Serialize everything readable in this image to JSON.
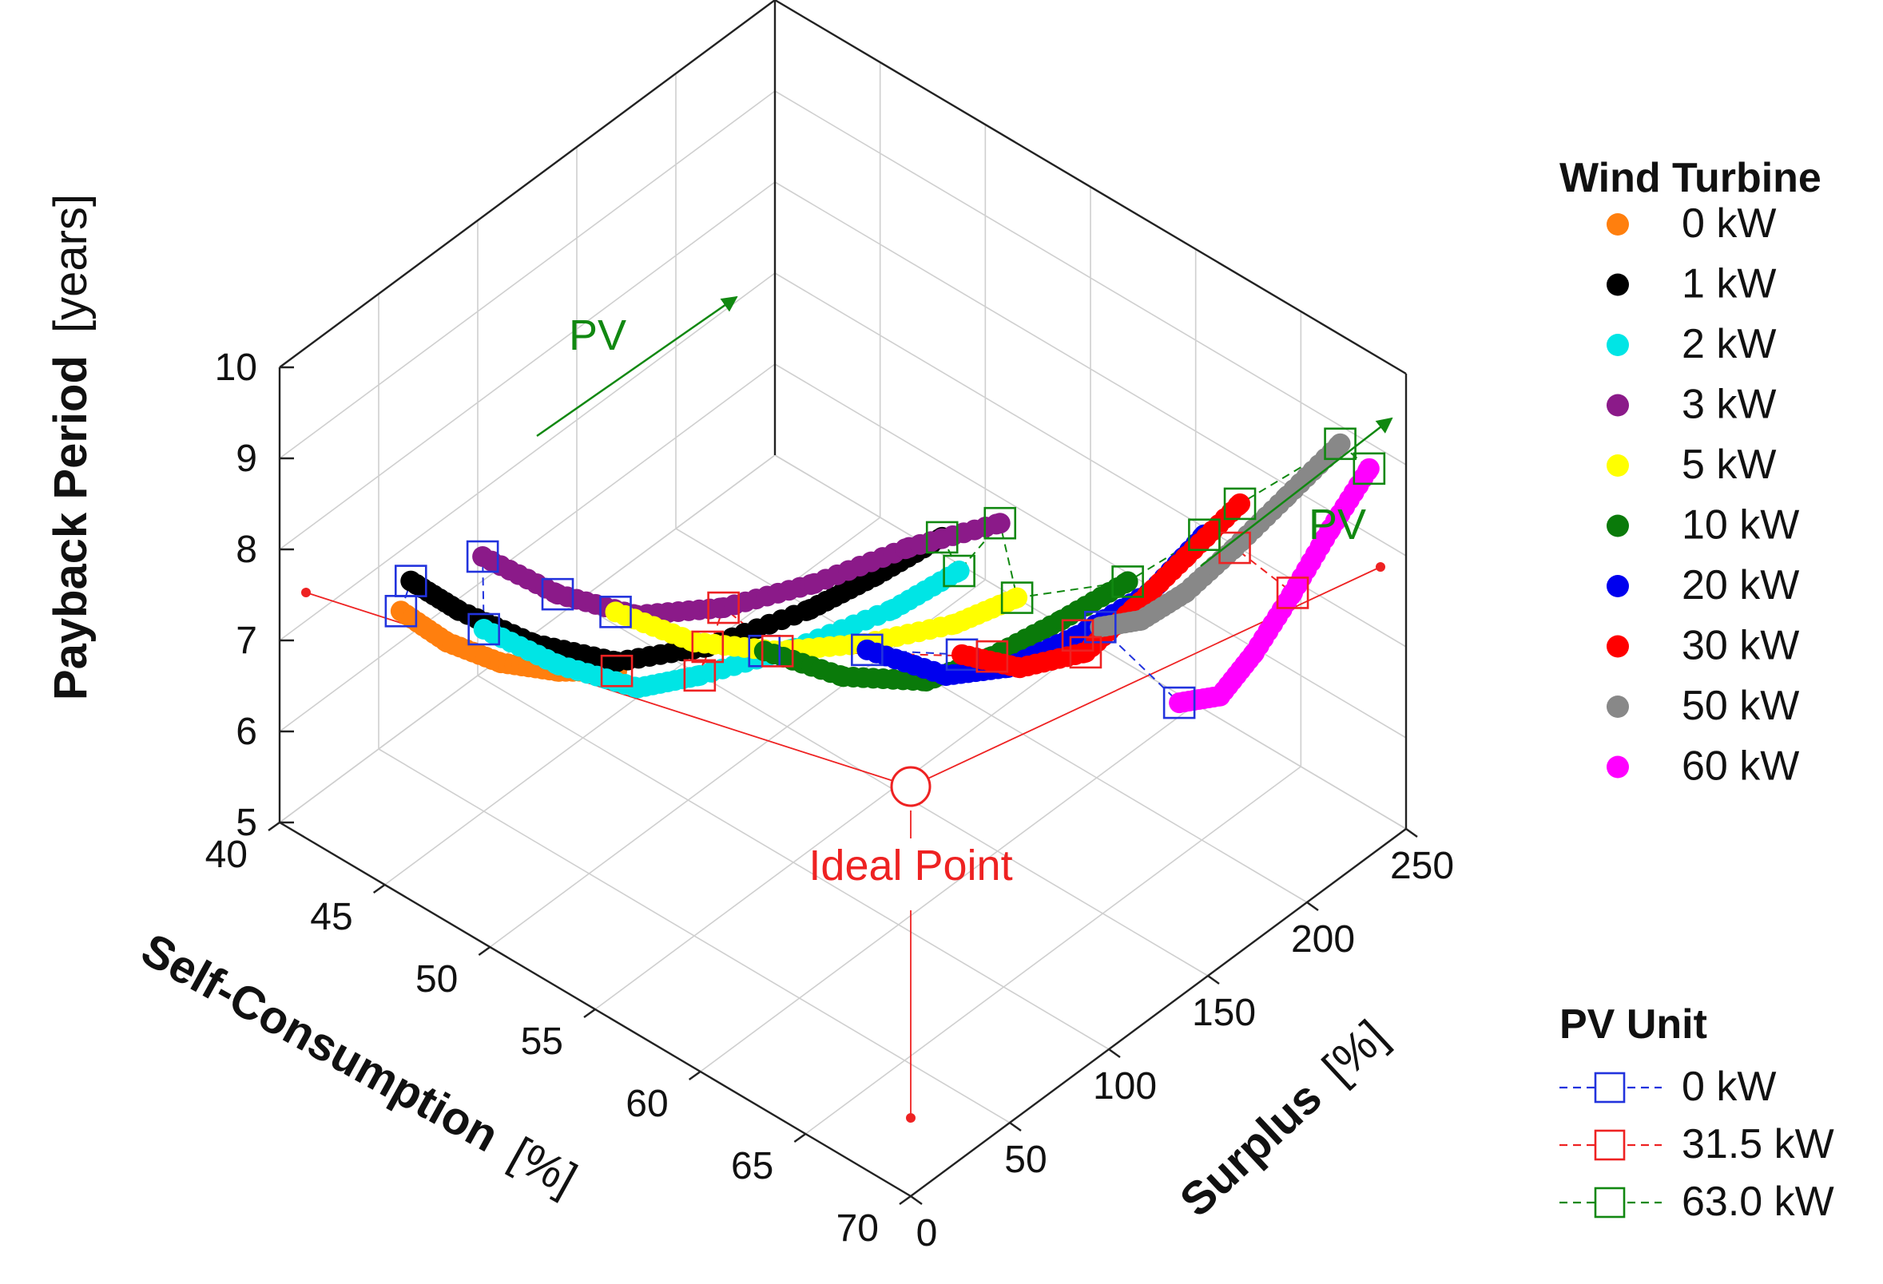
{
  "chart_data": {
    "type": "scatter",
    "subtype": "3d-scatter-line",
    "zlabel": "Payback Period",
    "zlabel_unit": "[years]",
    "xlabel": "Self-Consumption",
    "xlabel_unit": "[%]",
    "ylabel": "Surplus",
    "ylabel_unit": "[%]",
    "z_ticks": [
      "5",
      "6",
      "7",
      "8",
      "9",
      "10"
    ],
    "x_ticks": [
      "40",
      "45",
      "50",
      "55",
      "60",
      "65",
      "70"
    ],
    "y_ticks": [
      "0",
      "50",
      "100",
      "150",
      "200",
      "250"
    ],
    "xlim": [
      40,
      70
    ],
    "ylim": [
      0,
      250
    ],
    "zlim": [
      5,
      10
    ],
    "grid": true,
    "legend_wind": {
      "title": "Wind Turbine",
      "entries": [
        {
          "label": "0 kW",
          "color": "#ff7f0e"
        },
        {
          "label": "1 kW",
          "color": "#000000"
        },
        {
          "label": "2 kW",
          "color": "#00e5e5"
        },
        {
          "label": "3 kW",
          "color": "#8b1a89"
        },
        {
          "label": "5 kW",
          "color": "#ffff00"
        },
        {
          "label": "10 kW",
          "color": "#0a7a0a"
        },
        {
          "label": "20 kW",
          "color": "#0000ee"
        },
        {
          "label": "30 kW",
          "color": "#ff0000"
        },
        {
          "label": "50 kW",
          "color": "#888888"
        },
        {
          "label": "60 kW",
          "color": "#ff00ff"
        }
      ]
    },
    "legend_pv": {
      "title": "PV Unit",
      "entries": [
        {
          "label": "0 kW",
          "color": "#2233dd"
        },
        {
          "label": "31.5 kW",
          "color": "#ee2222"
        },
        {
          "label": "63.0 kW",
          "color": "#118811"
        }
      ]
    },
    "annotations": {
      "pv_left": "PV",
      "pv_right": "PV",
      "ideal_point": "Ideal Point"
    },
    "wind_series": [
      {
        "name": "0 kW",
        "color": "#ff7f0e",
        "points": [
          [
            42,
            40,
            6.95
          ],
          [
            44,
            42,
            6.85
          ],
          [
            46,
            48,
            6.8
          ],
          [
            48,
            56,
            6.85
          ],
          [
            50,
            64,
            7.0
          ]
        ]
      },
      {
        "name": "1 kW",
        "color": "#000000",
        "points": [
          [
            42,
            45,
            7.2
          ],
          [
            44,
            48,
            7.1
          ],
          [
            47,
            54,
            7.05
          ],
          [
            50,
            64,
            7.1
          ],
          [
            53,
            78,
            7.45
          ],
          [
            56,
            98,
            7.95
          ],
          [
            58,
            110,
            8.4
          ],
          [
            60,
            122,
            8.9
          ]
        ]
      },
      {
        "name": "2 kW",
        "color": "#00e5e5",
        "points": [
          [
            45,
            50,
            7.0
          ],
          [
            48,
            56,
            6.92
          ],
          [
            51,
            64,
            6.95
          ],
          [
            53,
            74,
            7.2
          ],
          [
            56,
            90,
            7.65
          ],
          [
            59,
            108,
            8.2
          ],
          [
            61,
            120,
            8.7
          ]
        ]
      },
      {
        "name": "3 kW",
        "color": "#8b1a89",
        "points": [
          [
            44,
            60,
            7.5
          ],
          [
            47,
            66,
            7.4
          ],
          [
            50,
            74,
            7.45
          ],
          [
            53,
            86,
            7.75
          ],
          [
            56,
            100,
            8.2
          ],
          [
            59,
            116,
            8.75
          ],
          [
            62,
            130,
            9.2
          ]
        ]
      },
      {
        "name": "5 kW",
        "color": "#ffff00",
        "points": [
          [
            49,
            74,
            7.35
          ],
          [
            52,
            82,
            7.3
          ],
          [
            55,
            92,
            7.45
          ],
          [
            58,
            104,
            7.75
          ],
          [
            61,
            118,
            8.15
          ],
          [
            63,
            128,
            8.55
          ]
        ]
      },
      {
        "name": "10 kW",
        "color": "#0a7a0a",
        "points": [
          [
            54,
            96,
            7.25
          ],
          [
            57,
            104,
            7.25
          ],
          [
            60,
            114,
            7.45
          ],
          [
            62,
            126,
            7.8
          ],
          [
            64,
            140,
            8.25
          ],
          [
            66,
            152,
            8.75
          ]
        ]
      },
      {
        "name": "20 kW",
        "color": "#0000ee",
        "points": [
          [
            57,
            116,
            7.35
          ],
          [
            60,
            124,
            7.35
          ],
          [
            62,
            134,
            7.55
          ],
          [
            64,
            148,
            7.95
          ],
          [
            66,
            164,
            8.45
          ],
          [
            67,
            180,
            8.95
          ]
        ]
      },
      {
        "name": "30 kW",
        "color": "#ff0000",
        "points": [
          [
            60,
            132,
            7.45
          ],
          [
            62,
            140,
            7.45
          ],
          [
            64,
            152,
            7.7
          ],
          [
            65,
            166,
            8.1
          ],
          [
            66,
            182,
            8.55
          ],
          [
            67,
            198,
            9.0
          ]
        ]
      },
      {
        "name": "50 kW",
        "color": "#888888",
        "points": [
          [
            63,
            170,
            7.55
          ],
          [
            64,
            180,
            7.6
          ],
          [
            65,
            192,
            7.85
          ],
          [
            66,
            206,
            8.25
          ],
          [
            67,
            222,
            8.7
          ],
          [
            68,
            238,
            9.15
          ]
        ]
      },
      {
        "name": "60 kW",
        "color": "#ff00ff",
        "points": [
          [
            66,
            178,
            7.0
          ],
          [
            67,
            188,
            7.05
          ],
          [
            67.5,
            200,
            7.4
          ],
          [
            68,
            214,
            7.9
          ],
          [
            68.5,
            228,
            8.45
          ],
          [
            69,
            242,
            8.95
          ]
        ]
      }
    ],
    "pv_series": [
      {
        "name": "0 kW",
        "color": "#2233dd",
        "points": [
          [
            42,
            40,
            6.95
          ],
          [
            42,
            45,
            7.2
          ],
          [
            45,
            50,
            7.0
          ],
          [
            44,
            60,
            7.5
          ],
          [
            47,
            66,
            7.4
          ],
          [
            49,
            74,
            7.35
          ],
          [
            54,
            96,
            7.25
          ],
          [
            57,
            116,
            7.35
          ],
          [
            60,
            132,
            7.45
          ],
          [
            63,
            170,
            7.55
          ],
          [
            66,
            178,
            7.0
          ]
        ]
      },
      {
        "name": "31.5 kW",
        "color": "#ee2222",
        "points": [
          [
            50,
            64,
            7.0
          ],
          [
            53,
            78,
            7.45
          ],
          [
            53,
            74,
            7.2
          ],
          [
            53,
            86,
            7.75
          ],
          [
            55,
            92,
            7.45
          ],
          [
            62,
            126,
            7.8
          ],
          [
            64,
            148,
            7.95
          ],
          [
            64,
            152,
            7.7
          ],
          [
            66,
            206,
            8.25
          ],
          [
            68,
            214,
            7.9
          ]
        ]
      },
      {
        "name": "63.0 kW",
        "color": "#118811",
        "points": [
          [
            60,
            122,
            8.9
          ],
          [
            61,
            120,
            8.7
          ],
          [
            62,
            130,
            9.2
          ],
          [
            63,
            128,
            8.55
          ],
          [
            66,
            152,
            8.75
          ],
          [
            67,
            180,
            8.95
          ],
          [
            67,
            198,
            9.0
          ],
          [
            68,
            238,
            9.15
          ],
          [
            69,
            242,
            8.95
          ]
        ]
      }
    ],
    "ideal_point": [
      70,
      0,
      5
    ]
  }
}
